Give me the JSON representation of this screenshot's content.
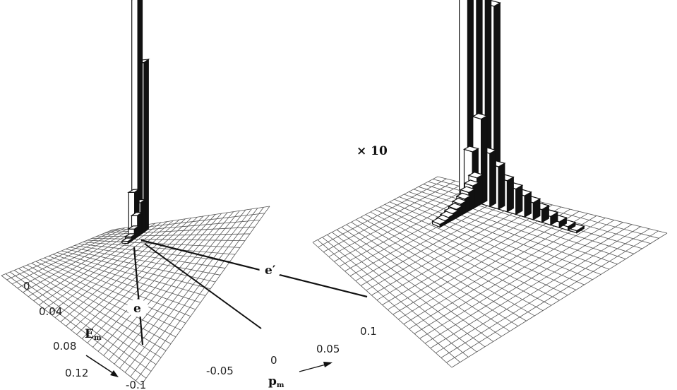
{
  "chart_data": [
    {
      "type": "3d-histogram",
      "panel": "left",
      "scale_label": "",
      "xlabel": "E",
      "xlabel_sub": "m",
      "ylabel": "p",
      "ylabel_sub": "m",
      "x_ticks": [
        "0",
        "0.04",
        "0.08",
        "0.12"
      ],
      "y_ticks": [
        "-0.1",
        "-0.05",
        "0",
        "0.05",
        "0.1"
      ],
      "xlim": [
        0,
        0.12
      ],
      "ylim": [
        -0.1,
        0.1
      ],
      "annotations": [
        "e",
        "e′"
      ],
      "bars": [
        {
          "e": 0.0,
          "p": -0.06,
          "h": 330
        },
        {
          "e": 0.0,
          "p": -0.052,
          "h": 240
        },
        {
          "e": 0.006,
          "p": -0.06,
          "h": 60
        },
        {
          "e": 0.006,
          "p": -0.052,
          "h": 45
        },
        {
          "e": 0.012,
          "p": -0.052,
          "h": 30
        },
        {
          "e": 0.018,
          "p": -0.052,
          "h": 14
        },
        {
          "e": 0.024,
          "p": -0.052,
          "h": 6
        },
        {
          "e": 0.03,
          "p": -0.052,
          "h": 3
        }
      ]
    },
    {
      "type": "3d-histogram",
      "panel": "right",
      "scale_label": "× 10",
      "xlabel": "",
      "ylabel": "",
      "x_ticks": [],
      "y_ticks": [],
      "bars": [
        {
          "e": 0.0,
          "p": -0.068,
          "h": 380
        },
        {
          "e": 0.0,
          "p": -0.06,
          "h": 380
        },
        {
          "e": 0.0,
          "p": -0.052,
          "h": 370
        },
        {
          "e": 0.0,
          "p": -0.044,
          "h": 280
        },
        {
          "e": 0.006,
          "p": -0.06,
          "h": 70
        },
        {
          "e": 0.006,
          "p": -0.052,
          "h": 120
        },
        {
          "e": 0.006,
          "p": -0.044,
          "h": 75
        },
        {
          "e": 0.006,
          "p": -0.036,
          "h": 60
        },
        {
          "e": 0.006,
          "p": -0.028,
          "h": 44
        },
        {
          "e": 0.006,
          "p": -0.02,
          "h": 36
        },
        {
          "e": 0.006,
          "p": -0.012,
          "h": 30
        },
        {
          "e": 0.006,
          "p": -0.004,
          "h": 24
        },
        {
          "e": 0.006,
          "p": 0.004,
          "h": 18
        },
        {
          "e": 0.006,
          "p": 0.012,
          "h": 12
        },
        {
          "e": 0.006,
          "p": 0.02,
          "h": 8
        },
        {
          "e": 0.006,
          "p": 0.028,
          "h": 5
        },
        {
          "e": 0.006,
          "p": 0.036,
          "h": 3
        },
        {
          "e": 0.012,
          "p": -0.052,
          "h": 40
        },
        {
          "e": 0.018,
          "p": -0.052,
          "h": 32
        },
        {
          "e": 0.024,
          "p": -0.052,
          "h": 26
        },
        {
          "e": 0.03,
          "p": -0.052,
          "h": 20
        },
        {
          "e": 0.036,
          "p": -0.052,
          "h": 16
        },
        {
          "e": 0.042,
          "p": -0.052,
          "h": 12
        },
        {
          "e": 0.048,
          "p": -0.052,
          "h": 9
        },
        {
          "e": 0.054,
          "p": -0.052,
          "h": 7
        },
        {
          "e": 0.06,
          "p": -0.052,
          "h": 5
        },
        {
          "e": 0.066,
          "p": -0.052,
          "h": 4
        }
      ]
    }
  ]
}
